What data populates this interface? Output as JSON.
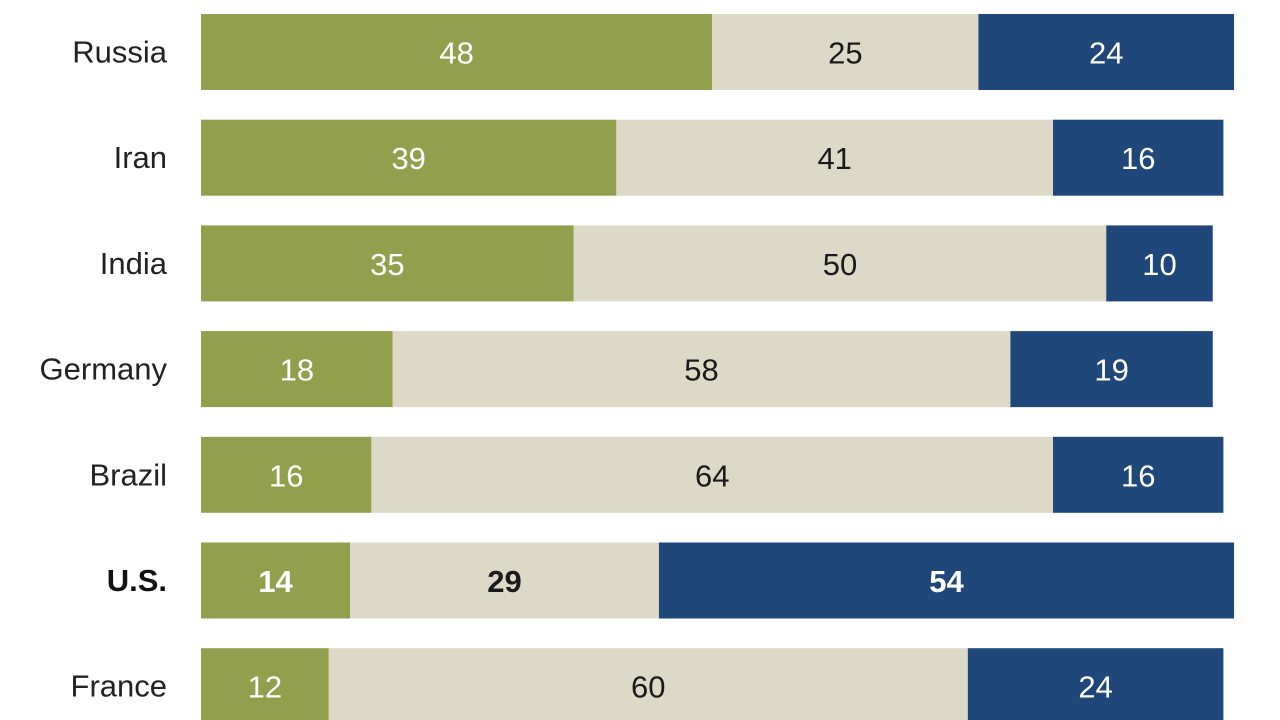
{
  "chart_data": {
    "type": "bar",
    "orientation": "horizontal",
    "stacked": true,
    "categories": [
      "Russia",
      "Iran",
      "India",
      "Germany",
      "Brazil",
      "U.S.",
      "France"
    ],
    "highlighted_category": "U.S.",
    "series": [
      {
        "values": [
          48,
          39,
          35,
          18,
          16,
          14,
          12
        ],
        "color": "#929f4c",
        "label_color": "#ffffff"
      },
      {
        "values": [
          25,
          41,
          50,
          58,
          64,
          29,
          60
        ],
        "color": "#ddd9c7",
        "label_color": "#1a1a1a"
      },
      {
        "values": [
          24,
          16,
          10,
          19,
          16,
          54,
          24
        ],
        "color": "#1f477a",
        "label_color": "#ffffff"
      }
    ],
    "xlim": [
      0,
      100
    ],
    "grid": false,
    "legend": "none"
  }
}
